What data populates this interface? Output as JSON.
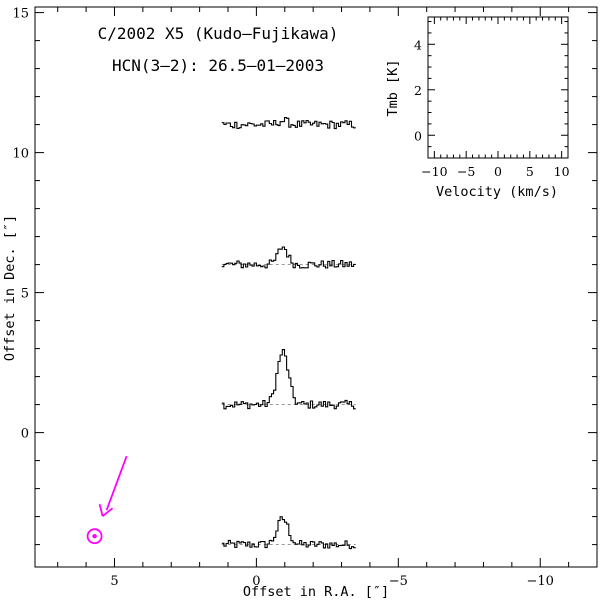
{
  "chart_data": {
    "type": "line",
    "title": "C/2002 X5 (Kudo–Fujikawa)",
    "subtitle": "HCN(3–2): 26.5–01–2003",
    "xlabel": "Offset in R.A. [″]",
    "ylabel": "Offset in Dec. [″]",
    "xlim": [
      7.8,
      -12.0
    ],
    "ylim": [
      -4.8,
      15.2
    ],
    "xticks": [
      5,
      0,
      -5,
      -10
    ],
    "xtick_labels": [
      "5",
      "0",
      "−5",
      "−10"
    ],
    "yticks": [
      0,
      5,
      10,
      15
    ],
    "ytick_labels": [
      "0",
      "5",
      "10",
      "15"
    ],
    "grid": false,
    "spectra": [
      {
        "ra_offset": -1.0,
        "dec_offset": -4.0,
        "peak_tmb": 2.3
      },
      {
        "ra_offset": -1.0,
        "dec_offset": 1.0,
        "peak_tmb": 4.7
      },
      {
        "ra_offset": -1.0,
        "dec_offset": 6.0,
        "peak_tmb": 1.6
      },
      {
        "ra_offset": -1.0,
        "dec_offset": 11.0,
        "peak_tmb": 0.35
      }
    ],
    "sun_direction_marker": {
      "ra_offset": 5.7,
      "dec_offset": -3.7,
      "color": "#ff00ff"
    },
    "inset": {
      "xlabel": "Velocity (km/s)",
      "ylabel": "Tmb [K]",
      "xlim": [
        -11,
        11
      ],
      "ylim": [
        -1,
        5.2
      ],
      "xticks": [
        -10,
        -5,
        0,
        5,
        10
      ],
      "xtick_labels": [
        "−10",
        "−5",
        "0",
        "5",
        "10"
      ],
      "yticks": [
        0,
        2,
        4
      ],
      "ytick_labels": [
        "0",
        "2",
        "4"
      ]
    }
  }
}
